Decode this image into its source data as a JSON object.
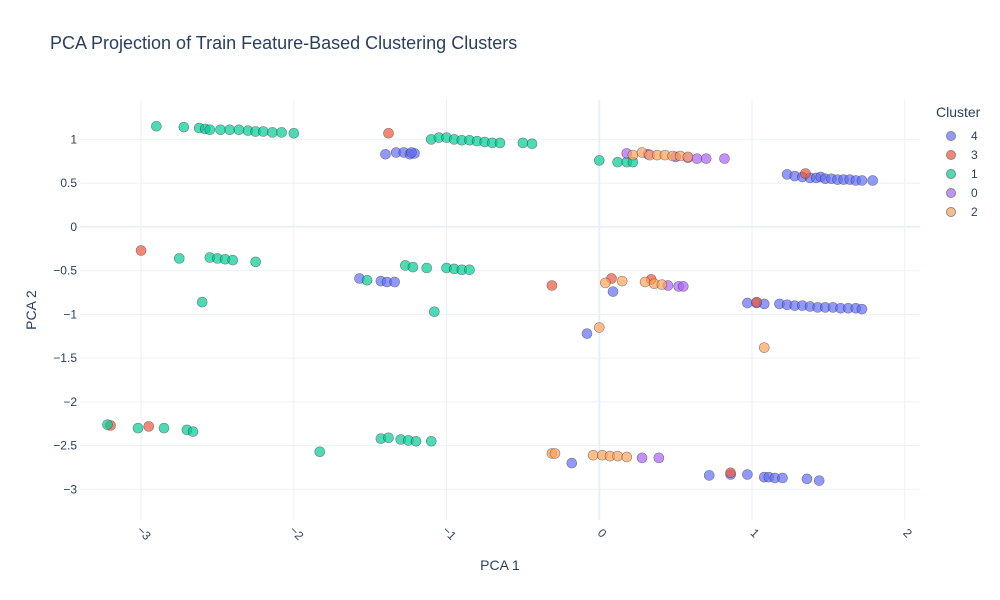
{
  "chart_data": {
    "type": "scatter",
    "title": "PCA Projection of Train Feature-Based Clustering Clusters",
    "xlabel": "PCA 1",
    "ylabel": "PCA 2",
    "xlim": [
      -3.4,
      2.1
    ],
    "ylim": [
      -3.35,
      1.45
    ],
    "xticks": [
      -3,
      -2,
      -1,
      0,
      1,
      2
    ],
    "xtick_labels": [
      "−3",
      "−2",
      "−1",
      "0",
      "1",
      "2"
    ],
    "yticks": [
      1,
      0.5,
      0,
      -0.5,
      -1,
      -1.5,
      -2,
      -2.5,
      -3
    ],
    "ytick_labels": [
      "1",
      "0.5",
      "0",
      "−0.5",
      "−1",
      "−1.5",
      "−2",
      "−2.5",
      "−3"
    ],
    "grid": true,
    "legend_title": "Cluster",
    "legend_position": "right",
    "series": [
      {
        "name": "4",
        "color": "#636efa",
        "points": [
          [
            -1.4,
            0.83
          ],
          [
            -1.33,
            0.85
          ],
          [
            -1.28,
            0.85
          ],
          [
            -1.24,
            0.83
          ],
          [
            -1.21,
            0.84
          ],
          [
            -1.23,
            0.85
          ],
          [
            -1.57,
            -0.59
          ],
          [
            -1.43,
            -0.62
          ],
          [
            -1.39,
            -0.63
          ],
          [
            -1.34,
            -0.63
          ],
          [
            0.09,
            -0.74
          ],
          [
            -0.08,
            -1.22
          ],
          [
            1.23,
            0.6
          ],
          [
            1.28,
            0.58
          ],
          [
            1.33,
            0.57
          ],
          [
            1.38,
            0.56
          ],
          [
            1.42,
            0.56
          ],
          [
            1.45,
            0.57
          ],
          [
            1.48,
            0.55
          ],
          [
            1.52,
            0.55
          ],
          [
            1.56,
            0.54
          ],
          [
            1.6,
            0.54
          ],
          [
            1.64,
            0.54
          ],
          [
            1.68,
            0.53
          ],
          [
            1.72,
            0.53
          ],
          [
            1.79,
            0.53
          ],
          [
            0.97,
            -0.87
          ],
          [
            1.03,
            -0.87
          ],
          [
            1.08,
            -0.88
          ],
          [
            1.18,
            -0.88
          ],
          [
            1.23,
            -0.89
          ],
          [
            1.28,
            -0.9
          ],
          [
            1.33,
            -0.9
          ],
          [
            1.38,
            -0.91
          ],
          [
            1.43,
            -0.92
          ],
          [
            1.48,
            -0.92
          ],
          [
            1.53,
            -0.92
          ],
          [
            1.58,
            -0.93
          ],
          [
            1.63,
            -0.93
          ],
          [
            1.68,
            -0.93
          ],
          [
            1.72,
            -0.94
          ],
          [
            -0.18,
            -2.7
          ],
          [
            0.72,
            -2.84
          ],
          [
            0.86,
            -2.83
          ],
          [
            0.97,
            -2.83
          ],
          [
            1.08,
            -2.86
          ],
          [
            1.11,
            -2.86
          ],
          [
            1.15,
            -2.87
          ],
          [
            1.2,
            -2.87
          ],
          [
            1.36,
            -2.88
          ],
          [
            1.44,
            -2.9
          ]
        ]
      },
      {
        "name": "3",
        "color": "#EF553B",
        "points": [
          [
            -1.38,
            1.07
          ],
          [
            -3.0,
            -0.27
          ],
          [
            -0.31,
            -0.67
          ],
          [
            0.08,
            -0.59
          ],
          [
            0.34,
            -0.6
          ],
          [
            1.35,
            0.61
          ],
          [
            1.03,
            -0.86
          ],
          [
            -2.95,
            -2.28
          ],
          [
            -3.2,
            -2.27
          ],
          [
            0.86,
            -2.81
          ]
        ]
      },
      {
        "name": "1",
        "color": "#00cc96",
        "points": [
          [
            -2.9,
            1.15
          ],
          [
            -2.72,
            1.14
          ],
          [
            -2.62,
            1.13
          ],
          [
            -2.58,
            1.12
          ],
          [
            -2.55,
            1.11
          ],
          [
            -2.48,
            1.11
          ],
          [
            -2.42,
            1.11
          ],
          [
            -2.36,
            1.11
          ],
          [
            -2.3,
            1.1
          ],
          [
            -2.25,
            1.09
          ],
          [
            -2.2,
            1.09
          ],
          [
            -2.14,
            1.08
          ],
          [
            -2.08,
            1.08
          ],
          [
            -2.0,
            1.07
          ],
          [
            -1.1,
            1.0
          ],
          [
            -1.05,
            1.02
          ],
          [
            -1.0,
            1.02
          ],
          [
            -0.95,
            1.0
          ],
          [
            -0.9,
            0.99
          ],
          [
            -0.85,
            0.99
          ],
          [
            -0.8,
            0.98
          ],
          [
            -0.75,
            0.97
          ],
          [
            -0.7,
            0.96
          ],
          [
            -0.65,
            0.96
          ],
          [
            -0.5,
            0.96
          ],
          [
            -0.44,
            0.95
          ],
          [
            0.0,
            0.76
          ],
          [
            0.12,
            0.74
          ],
          [
            0.18,
            0.74
          ],
          [
            0.22,
            0.74
          ],
          [
            -2.75,
            -0.36
          ],
          [
            -2.55,
            -0.35
          ],
          [
            -2.5,
            -0.36
          ],
          [
            -2.45,
            -0.37
          ],
          [
            -2.4,
            -0.38
          ],
          [
            -2.25,
            -0.4
          ],
          [
            -2.6,
            -0.86
          ],
          [
            -1.52,
            -0.61
          ],
          [
            -1.27,
            -0.44
          ],
          [
            -1.22,
            -0.46
          ],
          [
            -1.13,
            -0.47
          ],
          [
            -1.0,
            -0.47
          ],
          [
            -0.95,
            -0.48
          ],
          [
            -0.9,
            -0.49
          ],
          [
            -0.85,
            -0.49
          ],
          [
            -1.08,
            -0.97
          ],
          [
            -3.22,
            -2.26
          ],
          [
            -3.02,
            -2.3
          ],
          [
            -2.85,
            -2.3
          ],
          [
            -2.7,
            -2.32
          ],
          [
            -2.66,
            -2.34
          ],
          [
            -1.83,
            -2.57
          ],
          [
            -1.43,
            -2.42
          ],
          [
            -1.38,
            -2.41
          ],
          [
            -1.3,
            -2.43
          ],
          [
            -1.25,
            -2.44
          ],
          [
            -1.2,
            -2.45
          ],
          [
            -1.1,
            -2.45
          ]
        ]
      },
      {
        "name": "0",
        "color": "#ab63fa",
        "points": [
          [
            0.18,
            0.84
          ],
          [
            0.32,
            0.83
          ],
          [
            0.5,
            0.8
          ],
          [
            0.58,
            0.79
          ],
          [
            0.64,
            0.78
          ],
          [
            0.7,
            0.78
          ],
          [
            0.82,
            0.78
          ],
          [
            0.45,
            -0.67
          ],
          [
            0.52,
            -0.68
          ],
          [
            0.55,
            -0.68
          ],
          [
            0.28,
            -2.64
          ],
          [
            0.39,
            -2.64
          ]
        ]
      },
      {
        "name": "2",
        "color": "#FFA15A",
        "points": [
          [
            0.22,
            0.82
          ],
          [
            0.28,
            0.85
          ],
          [
            0.33,
            0.82
          ],
          [
            0.38,
            0.82
          ],
          [
            0.43,
            0.82
          ],
          [
            0.48,
            0.81
          ],
          [
            0.53,
            0.81
          ],
          [
            0.58,
            0.8
          ],
          [
            0.04,
            -0.64
          ],
          [
            0.15,
            -0.62
          ],
          [
            0.3,
            -0.63
          ],
          [
            0.36,
            -0.65
          ],
          [
            0.41,
            -0.66
          ],
          [
            0.0,
            -1.15
          ],
          [
            1.08,
            -1.38
          ],
          [
            -0.31,
            -2.59
          ],
          [
            -0.29,
            -2.59
          ],
          [
            -0.04,
            -2.61
          ],
          [
            0.02,
            -2.61
          ],
          [
            0.07,
            -2.62
          ],
          [
            0.12,
            -2.62
          ],
          [
            0.18,
            -2.63
          ]
        ]
      }
    ]
  }
}
